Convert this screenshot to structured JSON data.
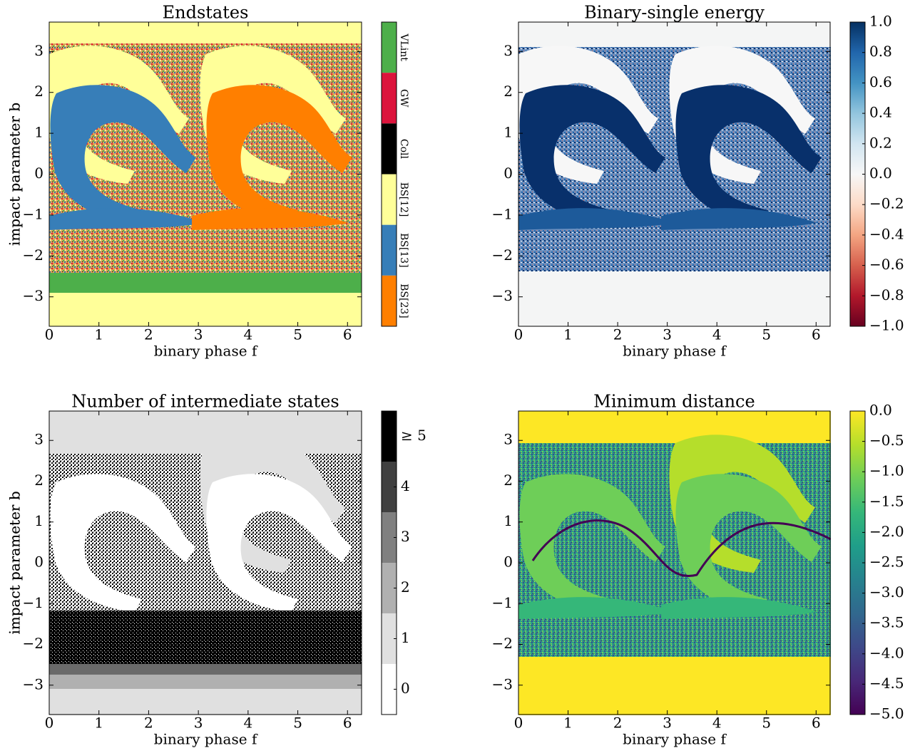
{
  "chart_data": [
    {
      "type": "heatmap",
      "title": "Endstates",
      "xlabel": "binary phase f",
      "ylabel": "impact parameter b",
      "xlim": [
        0,
        6.283
      ],
      "ylim": [
        -3.72,
        3.72
      ],
      "xticks": [
        0,
        1,
        2,
        3,
        4,
        5,
        6
      ],
      "yticks": [
        {
          "value": -3,
          "label": "−3"
        },
        {
          "value": -2,
          "label": "−2"
        },
        {
          "value": -1,
          "label": "−1"
        },
        0,
        1,
        2,
        3
      ],
      "colorbar": {
        "kind": "categories",
        "labels": [
          "VLint",
          "GW",
          "Coll",
          "BS[12]",
          "BS[13]",
          "BS[23]"
        ],
        "colors": [
          "#4daf4a",
          "#dc143c",
          "#000000",
          "#ffff99",
          "#377eb8",
          "#ff7f00"
        ]
      }
    },
    {
      "type": "heatmap",
      "title": "Binary-single energy",
      "xlabel": "binary phase f",
      "ylabel": "impact parameter b",
      "xlim": [
        0,
        6.283
      ],
      "ylim": [
        -3.72,
        3.72
      ],
      "xticks": [
        0,
        1,
        2,
        3,
        4,
        5,
        6
      ],
      "yticks": [
        {
          "value": -3,
          "label": "−3"
        },
        {
          "value": -2,
          "label": "−2"
        },
        {
          "value": -1,
          "label": "−1"
        },
        0,
        1,
        2,
        3
      ],
      "colorbar": {
        "kind": "gradient",
        "clim": [
          -1,
          1
        ],
        "colors": [
          "#67001f",
          "#b2182b",
          "#d6604d",
          "#f4a582",
          "#fddbc7",
          "#f7f7f7",
          "#d1e5f0",
          "#92c5de",
          "#4393c3",
          "#2166ac",
          "#053061"
        ],
        "ticks": [
          {
            "value": -1,
            "label": "−1.0"
          },
          {
            "value": -0.8,
            "label": "−0.8"
          },
          {
            "value": -0.6,
            "label": "−0.6"
          },
          {
            "value": -0.4,
            "label": "−0.4"
          },
          {
            "value": -0.2,
            "label": "−0.2"
          },
          {
            "value": 0,
            "label": "0.0"
          },
          0.2,
          0.4,
          0.6,
          0.8,
          {
            "value": 1,
            "label": "1.0"
          }
        ]
      }
    },
    {
      "type": "heatmap",
      "title": "Number of intermediate states",
      "xlabel": "binary phase f",
      "ylabel": "impact parameter b",
      "xlim": [
        0,
        6.283
      ],
      "ylim": [
        -3.72,
        3.72
      ],
      "xticks": [
        0,
        1,
        2,
        3,
        4,
        5,
        6
      ],
      "yticks": [
        {
          "value": -3,
          "label": "−3"
        },
        {
          "value": -2,
          "label": "−2"
        },
        {
          "value": -1,
          "label": "−1"
        },
        0,
        1,
        2,
        3
      ],
      "colorbar": {
        "kind": "levels",
        "clim": [
          -0.5,
          5.5
        ],
        "colors": [
          "#ffffff",
          "#e0e0e0",
          "#b0b0b0",
          "#808080",
          "#404040",
          "#000000"
        ],
        "ticks": [
          0,
          1,
          2,
          3,
          4,
          {
            "value": 5,
            "label": "≥ 5"
          }
        ]
      }
    },
    {
      "type": "heatmap",
      "title": "Minimum distance",
      "xlabel": "binary phase f",
      "ylabel": "impact parameter b",
      "xlim": [
        0,
        6.283
      ],
      "ylim": [
        -3.72,
        3.72
      ],
      "xticks": [
        0,
        1,
        2,
        3,
        4,
        5,
        6
      ],
      "yticks": [
        {
          "value": -3,
          "label": "−3"
        },
        {
          "value": -2,
          "label": "−2"
        },
        {
          "value": -1,
          "label": "−1"
        },
        0,
        1,
        2,
        3
      ],
      "colorbar": {
        "kind": "gradient",
        "clim": [
          -5,
          0
        ],
        "colors": [
          "#440154",
          "#482878",
          "#3e4989",
          "#31688e",
          "#26828e",
          "#1f9e89",
          "#35b779",
          "#6ece58",
          "#b5de2b",
          "#fde725"
        ],
        "ticks": [
          {
            "value": -5,
            "label": "−5.0"
          },
          {
            "value": -4.5,
            "label": "−4.5"
          },
          {
            "value": -4,
            "label": "−4.0"
          },
          {
            "value": -3.5,
            "label": "−3.5"
          },
          {
            "value": -3,
            "label": "−3.0"
          },
          {
            "value": -2.5,
            "label": "−2.5"
          },
          {
            "value": -2,
            "label": "−2.0"
          },
          {
            "value": -1.5,
            "label": "−1.5"
          },
          {
            "value": -1,
            "label": "−1.0"
          },
          {
            "value": -0.5,
            "label": "−0.5"
          },
          {
            "value": 0,
            "label": "0.0"
          }
        ]
      }
    }
  ]
}
